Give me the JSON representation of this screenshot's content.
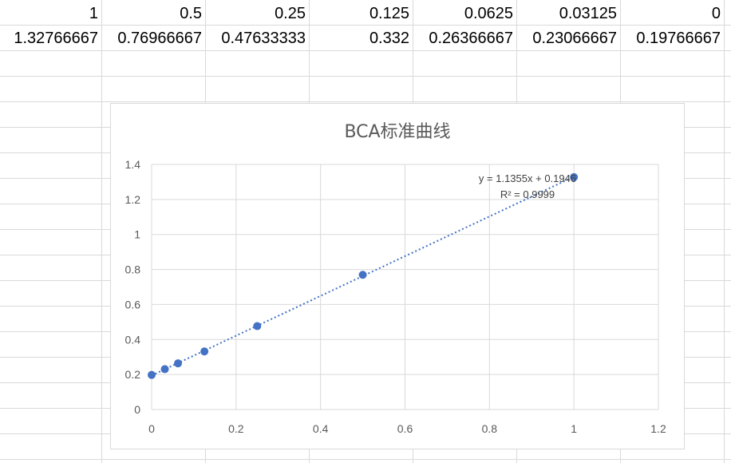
{
  "sheet": {
    "row1": [
      "1",
      "0.5",
      "0.25",
      "0.125",
      "0.0625",
      "0.03125",
      "0"
    ],
    "row2": [
      "1.32766667",
      "0.76966667",
      "0.47633333",
      "0.332",
      "0.26366667",
      "0.23066667",
      "0.19766667"
    ]
  },
  "chart_data": {
    "type": "scatter",
    "title": "BCA标准曲线",
    "xlabel": "",
    "ylabel": "",
    "xlim": [
      0,
      1.2
    ],
    "ylim": [
      0,
      1.4
    ],
    "x_ticks": [
      "0",
      "0.2",
      "0.4",
      "0.6",
      "0.8",
      "1",
      "1.2"
    ],
    "y_ticks": [
      "0",
      "0.2",
      "0.4",
      "0.6",
      "0.8",
      "1",
      "1.2",
      "1.4"
    ],
    "grid": true,
    "series": [
      {
        "x": [
          1,
          0.5,
          0.25,
          0.125,
          0.0625,
          0.03125,
          0
        ],
        "y": [
          1.32766667,
          0.76966667,
          0.47633333,
          0.332,
          0.26366667,
          0.23066667,
          0.19766667
        ],
        "color": "#4472c4"
      }
    ],
    "trendline": {
      "type": "linear",
      "slope": 1.1355,
      "intercept": 0.1946,
      "equation": "y = 1.1355x + 0.1946",
      "r_squared": "R² = 0.9999",
      "color": "#4472c4"
    }
  }
}
